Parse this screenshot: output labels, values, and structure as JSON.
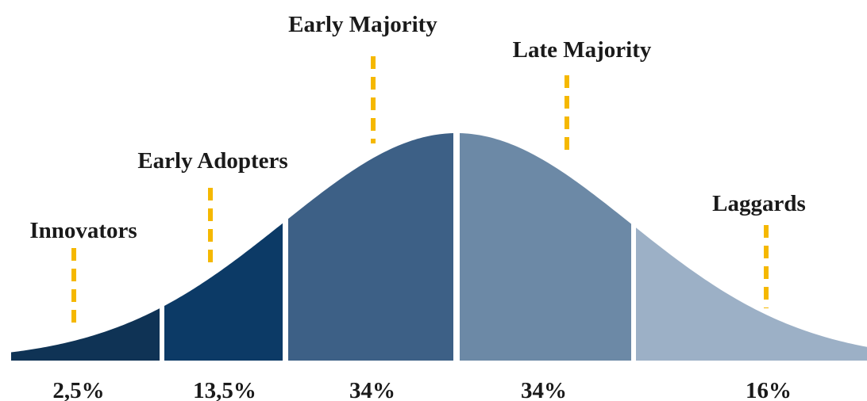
{
  "segments": [
    {
      "label": "Innovators",
      "percent": "2,5%",
      "color": "#0f3355"
    },
    {
      "label": "Early Adopters",
      "percent": "13,5%",
      "color": "#0c3a66"
    },
    {
      "label": "Early Majority",
      "percent": "34%",
      "color": "#3d6086"
    },
    {
      "label": "Late Majority",
      "percent": "34%",
      "color": "#6c89a6"
    },
    {
      "label": "Laggards",
      "percent": "16%",
      "color": "#9cb0c6"
    }
  ],
  "marker_color": "#f5b800"
}
